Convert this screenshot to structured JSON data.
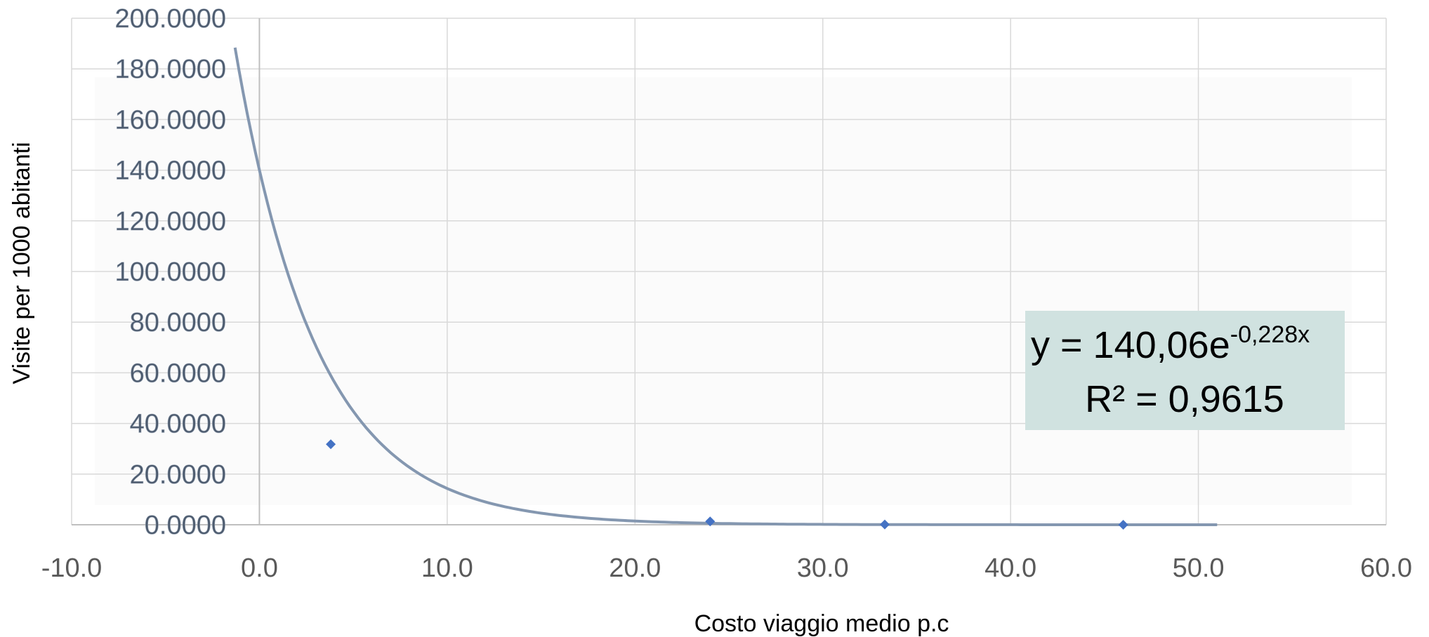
{
  "chart_data": {
    "type": "scatter",
    "title": "",
    "xlabel": "Costo viaggio medio p.c",
    "ylabel": "Visite per 1000 abitanti",
    "xlim": [
      -10,
      60
    ],
    "ylim": [
      0,
      200
    ],
    "x_ticks": [
      "-10.0",
      "0.0",
      "10.0",
      "20.0",
      "30.0",
      "40.0",
      "50.0",
      "60.0"
    ],
    "y_ticks": [
      "0.0000",
      "20.0000",
      "40.0000",
      "60.0000",
      "80.0000",
      "100.0000",
      "120.0000",
      "140.0000",
      "160.0000",
      "180.0000",
      "200.0000"
    ],
    "grid": true,
    "series": [
      {
        "points": [
          [
            3.8,
            31.8
          ],
          [
            24.0,
            1.3
          ],
          [
            33.3,
            0.1
          ],
          [
            46.0,
            0.0
          ]
        ]
      }
    ],
    "trendline": {
      "type": "exponential",
      "a": 140.06,
      "b": -0.228,
      "x_range": [
        -1.3,
        51.0
      ],
      "equation_main": "y = 140,06e",
      "equation_exponent": "-0,228x",
      "r_squared": "R² = 0,9615"
    },
    "colors": {
      "marker": "#4472c4",
      "trendline": "#8497b0",
      "grid": "#d9d9d9",
      "label_box": "#d0e2e0"
    }
  }
}
